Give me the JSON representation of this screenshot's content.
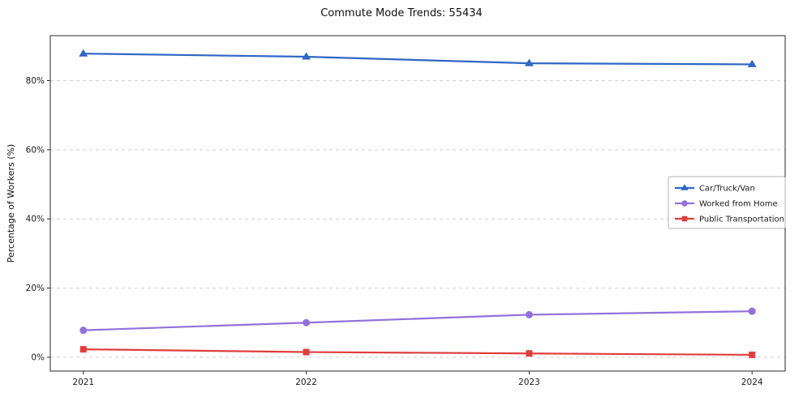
{
  "chart_data": {
    "type": "line",
    "title": "Commute Mode Trends: 55434",
    "ylabel": "Percentage of Workers (%)",
    "x": [
      "2021",
      "2022",
      "2023",
      "2024"
    ],
    "ylim": [
      -4,
      93
    ],
    "yticks": [
      0,
      20,
      40,
      60,
      80
    ],
    "ytick_suffix": "%",
    "grid": "horizontal-dashed",
    "grid_color": "#cfcfcf",
    "axis_color": "#2a2a2a",
    "legend_position": "center-right",
    "series": [
      {
        "name": "Car/Truck/Van",
        "color": "#2f66c4",
        "marker": "triangle",
        "values": [
          87.8,
          86.9,
          85.0,
          84.7
        ]
      },
      {
        "name": "Worked from Home",
        "color": "#9370db",
        "marker": "circle",
        "values": [
          7.8,
          10.0,
          12.3,
          13.3
        ]
      },
      {
        "name": "Public Transportation",
        "color": "#e03e3e",
        "marker": "square",
        "values": [
          2.3,
          1.5,
          1.1,
          0.7
        ]
      }
    ]
  }
}
